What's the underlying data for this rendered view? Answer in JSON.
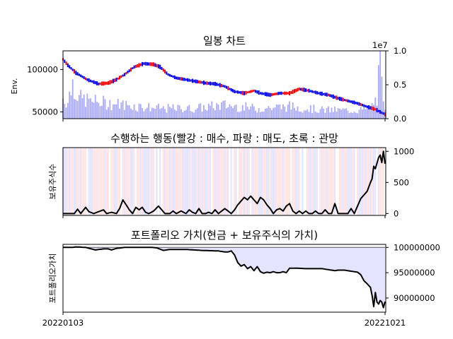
{
  "charts": {
    "candle": {
      "title": "일봉 차트",
      "ylabel": "Env.",
      "y_ticks": [
        50000,
        100000
      ],
      "ylim": [
        42000,
        122000
      ],
      "volume_scale_label": "1e7",
      "volume_ticks": [
        "0.0",
        "0.5",
        "1.0"
      ],
      "volume_ylim": [
        0,
        1.0
      ]
    },
    "action": {
      "title": "수행하는 행동(빨강 : 매수, 파랑 : 매도, 초록 : 관망",
      "ylabel": "보유주식수",
      "y_ticks": [
        0,
        500,
        1000
      ],
      "ylim": [
        -30,
        1060
      ]
    },
    "portfolio": {
      "title": "포트폴리오 가치(현금 + 보유주식의 가치)",
      "ylabel": "포트폴리오가치",
      "y_ticks": [
        90000000,
        95000000,
        100000000
      ],
      "ylim": [
        87200000,
        100600000
      ],
      "baseline": 100000000,
      "x_tick_labels": [
        "20220103",
        "20221021"
      ]
    }
  },
  "colors": {
    "up": "#ff0000",
    "down": "#0000ff",
    "volume": "#aaaaff",
    "buy_band": "#ffe4e4",
    "sell_band": "#e4e4ff",
    "fill": "#e4e4ff",
    "line": "#000000"
  },
  "chart_data": {
    "type": "line",
    "n_days": 200,
    "x_range": [
      "20220103",
      "20221021"
    ],
    "price_anchors": [
      [
        0,
        112000
      ],
      [
        3,
        105000
      ],
      [
        8,
        96000
      ],
      [
        15,
        88000
      ],
      [
        22,
        83000
      ],
      [
        28,
        84000
      ],
      [
        33,
        88000
      ],
      [
        38,
        94000
      ],
      [
        44,
        103000
      ],
      [
        50,
        107000
      ],
      [
        56,
        106000
      ],
      [
        60,
        103000
      ],
      [
        65,
        94000
      ],
      [
        70,
        90000
      ],
      [
        76,
        88000
      ],
      [
        82,
        86000
      ],
      [
        88,
        84000
      ],
      [
        94,
        83000
      ],
      [
        100,
        80000
      ],
      [
        106,
        74000
      ],
      [
        112,
        72000
      ],
      [
        118,
        75000
      ],
      [
        122,
        72000
      ],
      [
        128,
        70000
      ],
      [
        134,
        72000
      ],
      [
        140,
        72000
      ],
      [
        146,
        77000
      ],
      [
        152,
        75000
      ],
      [
        158,
        72000
      ],
      [
        164,
        70000
      ],
      [
        170,
        66000
      ],
      [
        176,
        63000
      ],
      [
        182,
        60000
      ],
      [
        188,
        56000
      ],
      [
        193,
        53000
      ],
      [
        197,
        49000
      ],
      [
        199,
        47000
      ]
    ],
    "volume_anchors": [
      [
        0,
        0.3
      ],
      [
        3,
        0.25
      ],
      [
        6,
        0.55
      ],
      [
        10,
        0.3
      ],
      [
        20,
        0.25
      ],
      [
        40,
        0.2
      ],
      [
        60,
        0.15
      ],
      [
        80,
        0.15
      ],
      [
        100,
        0.2
      ],
      [
        120,
        0.15
      ],
      [
        140,
        0.18
      ],
      [
        160,
        0.13
      ],
      [
        180,
        0.12
      ],
      [
        190,
        0.15
      ],
      [
        194,
        0.3
      ],
      [
        195,
        0.55
      ],
      [
        196,
        0.95
      ],
      [
        197,
        0.45
      ],
      [
        198,
        0.2
      ],
      [
        199,
        0.1
      ]
    ],
    "holdings_anchors": [
      [
        0,
        0
      ],
      [
        7,
        0
      ],
      [
        9,
        70
      ],
      [
        11,
        0
      ],
      [
        14,
        100
      ],
      [
        16,
        30
      ],
      [
        19,
        0
      ],
      [
        22,
        30
      ],
      [
        25,
        60
      ],
      [
        27,
        0
      ],
      [
        30,
        20
      ],
      [
        33,
        0
      ],
      [
        35,
        80
      ],
      [
        37,
        220
      ],
      [
        39,
        140
      ],
      [
        41,
        60
      ],
      [
        43,
        0
      ],
      [
        45,
        100
      ],
      [
        47,
        60
      ],
      [
        49,
        100
      ],
      [
        51,
        20
      ],
      [
        53,
        0
      ],
      [
        56,
        40
      ],
      [
        59,
        120
      ],
      [
        61,
        60
      ],
      [
        63,
        0
      ],
      [
        66,
        0
      ],
      [
        68,
        40
      ],
      [
        70,
        0
      ],
      [
        73,
        40
      ],
      [
        76,
        0
      ],
      [
        78,
        60
      ],
      [
        80,
        20
      ],
      [
        82,
        0
      ],
      [
        84,
        80
      ],
      [
        86,
        0
      ],
      [
        88,
        0
      ],
      [
        90,
        20
      ],
      [
        92,
        0
      ],
      [
        94,
        60
      ],
      [
        96,
        0
      ],
      [
        98,
        40
      ],
      [
        100,
        80
      ],
      [
        102,
        40
      ],
      [
        104,
        0
      ],
      [
        106,
        60
      ],
      [
        108,
        140
      ],
      [
        110,
        200
      ],
      [
        112,
        260
      ],
      [
        114,
        220
      ],
      [
        116,
        280
      ],
      [
        118,
        220
      ],
      [
        120,
        160
      ],
      [
        122,
        260
      ],
      [
        124,
        220
      ],
      [
        126,
        140
      ],
      [
        128,
        80
      ],
      [
        130,
        0
      ],
      [
        132,
        60
      ],
      [
        134,
        80
      ],
      [
        136,
        40
      ],
      [
        138,
        120
      ],
      [
        140,
        160
      ],
      [
        142,
        40
      ],
      [
        144,
        0
      ],
      [
        146,
        40
      ],
      [
        148,
        0
      ],
      [
        150,
        40
      ],
      [
        152,
        0
      ],
      [
        154,
        0
      ],
      [
        156,
        40
      ],
      [
        158,
        0
      ],
      [
        160,
        0
      ],
      [
        162,
        60
      ],
      [
        164,
        0
      ],
      [
        166,
        0
      ],
      [
        168,
        160
      ],
      [
        170,
        0
      ],
      [
        172,
        0
      ],
      [
        174,
        0
      ],
      [
        176,
        0
      ],
      [
        178,
        80
      ],
      [
        180,
        0
      ],
      [
        182,
        120
      ],
      [
        184,
        240
      ],
      [
        186,
        300
      ],
      [
        188,
        360
      ],
      [
        190,
        500
      ],
      [
        191,
        560
      ],
      [
        192,
        760
      ],
      [
        193,
        720
      ],
      [
        195,
        900
      ],
      [
        196,
        940
      ],
      [
        197,
        820
      ],
      [
        198,
        1000
      ],
      [
        199,
        800
      ]
    ],
    "portfolio_anchors": [
      [
        0,
        100000000
      ],
      [
        6,
        100000000
      ],
      [
        8,
        100100000
      ],
      [
        14,
        100000000
      ],
      [
        20,
        99500000
      ],
      [
        25,
        99700000
      ],
      [
        28,
        99700000
      ],
      [
        30,
        99500000
      ],
      [
        33,
        99800000
      ],
      [
        38,
        100000000
      ],
      [
        44,
        100000000
      ],
      [
        50,
        100000000
      ],
      [
        55,
        100000000
      ],
      [
        58,
        99900000
      ],
      [
        62,
        99400000
      ],
      [
        66,
        99600000
      ],
      [
        76,
        99600000
      ],
      [
        86,
        99400000
      ],
      [
        96,
        99300000
      ],
      [
        100,
        99100000
      ],
      [
        102,
        99100000
      ],
      [
        104,
        99300000
      ],
      [
        106,
        98500000
      ],
      [
        108,
        97000000
      ],
      [
        110,
        96300000
      ],
      [
        112,
        96600000
      ],
      [
        114,
        95800000
      ],
      [
        116,
        96200000
      ],
      [
        118,
        95400000
      ],
      [
        120,
        96200000
      ],
      [
        122,
        95200000
      ],
      [
        124,
        94900000
      ],
      [
        126,
        95100000
      ],
      [
        128,
        95000000
      ],
      [
        130,
        95200000
      ],
      [
        132,
        95000000
      ],
      [
        134,
        95000000
      ],
      [
        136,
        95200000
      ],
      [
        138,
        95000000
      ],
      [
        140,
        95900000
      ],
      [
        144,
        95900000
      ],
      [
        150,
        95800000
      ],
      [
        156,
        95800000
      ],
      [
        160,
        95800000
      ],
      [
        164,
        95600000
      ],
      [
        168,
        95400000
      ],
      [
        170,
        95500000
      ],
      [
        174,
        95500000
      ],
      [
        178,
        95300000
      ],
      [
        182,
        95100000
      ],
      [
        184,
        94600000
      ],
      [
        186,
        93400000
      ],
      [
        188,
        92800000
      ],
      [
        190,
        92100000
      ],
      [
        191,
        90500000
      ],
      [
        192,
        88300000
      ],
      [
        193,
        91100000
      ],
      [
        194,
        89200000
      ],
      [
        195,
        88800000
      ],
      [
        196,
        89500000
      ],
      [
        197,
        89200000
      ],
      [
        198,
        88100000
      ],
      [
        199,
        89300000
      ]
    ]
  }
}
